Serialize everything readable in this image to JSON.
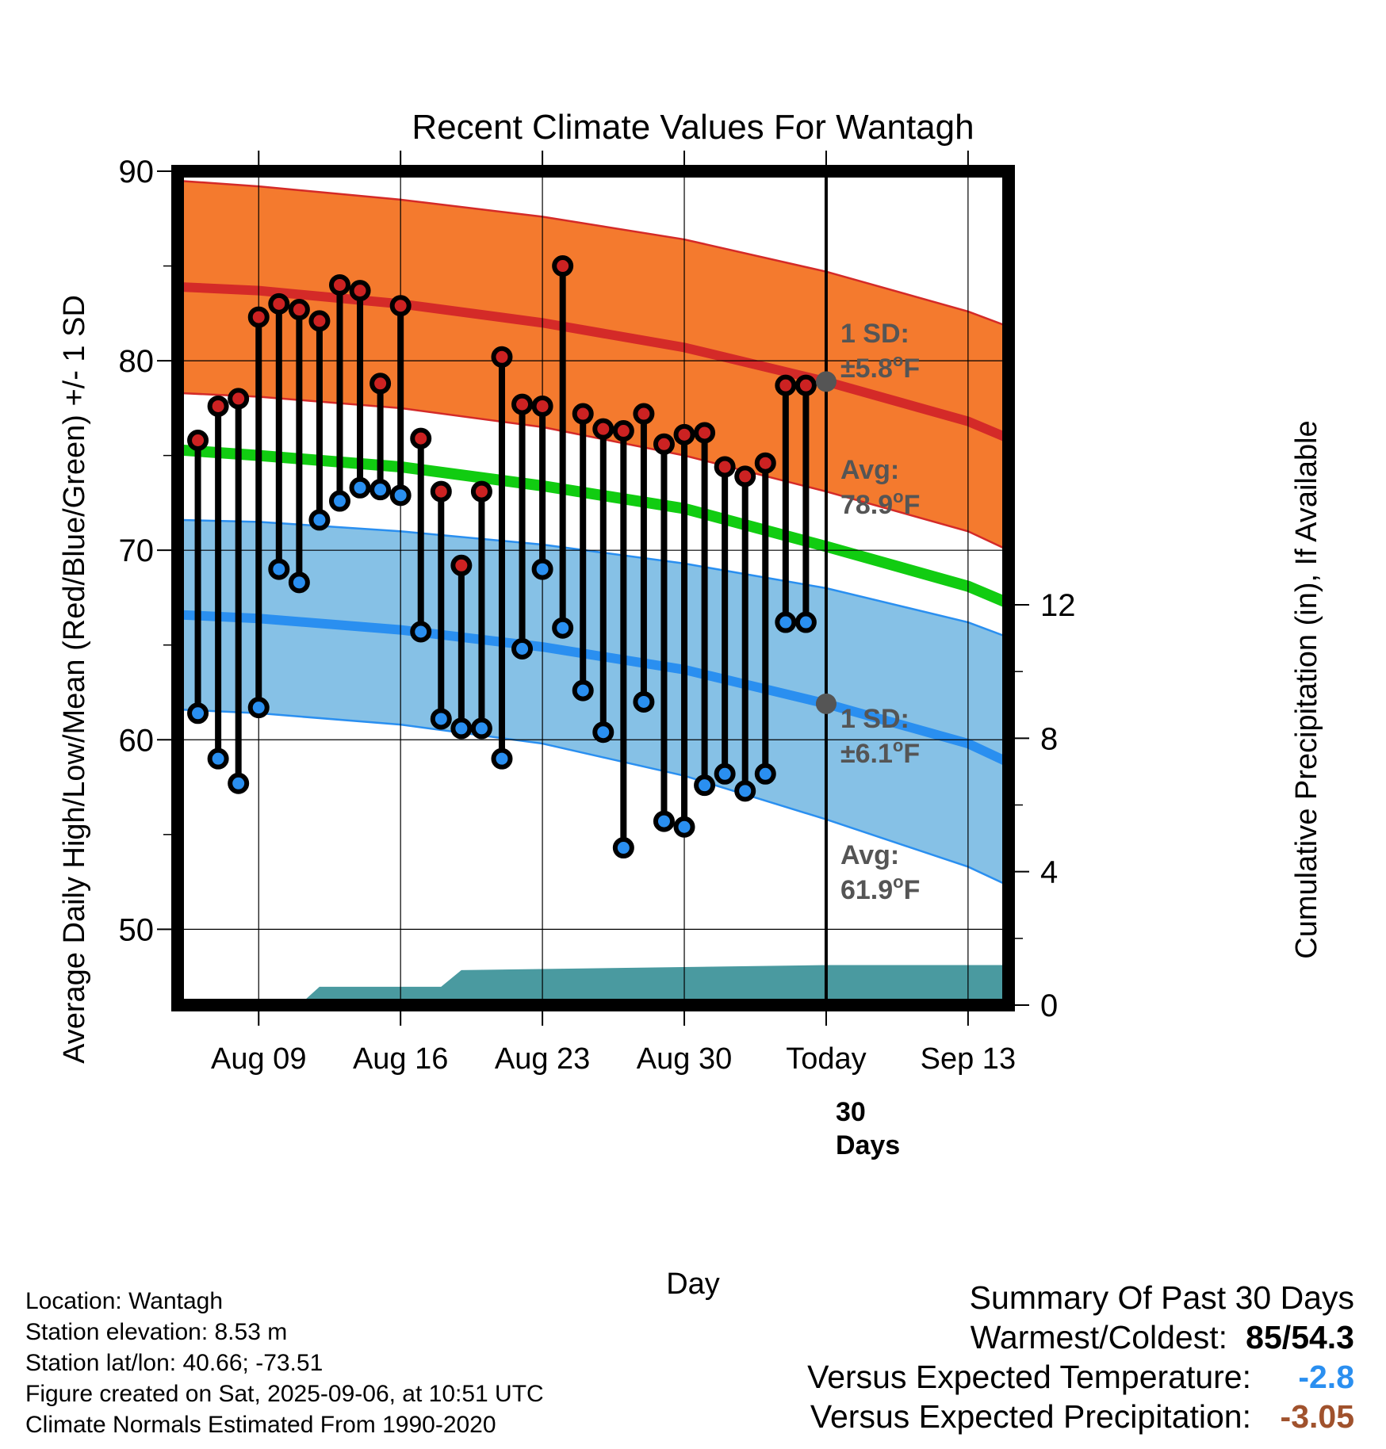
{
  "chart_data": {
    "type": "line",
    "title": "Recent Climate Values For Wantagh",
    "xlabel": "Day",
    "ylabel": "Average Daily High/Low/Mean (Red/Blue/Green) +/- 1 SD",
    "y2label": "Cumulative Precipitation (in), If Available",
    "ylim": [
      46,
      90
    ],
    "y2lim": [
      0,
      25
    ],
    "yticks": [
      50,
      60,
      70,
      80,
      90
    ],
    "y2ticks": [
      0,
      4,
      8,
      12
    ],
    "x_tick_labels": [
      {
        "label": "Aug 09",
        "date": "2025-08-09"
      },
      {
        "label": "Aug 16",
        "date": "2025-08-16"
      },
      {
        "label": "Aug 23",
        "date": "2025-08-23"
      },
      {
        "label": "Aug 30",
        "date": "2025-08-30"
      },
      {
        "label": "Today",
        "date": "2025-09-06"
      },
      {
        "label": "Sep 13",
        "date": "2025-09-13"
      }
    ],
    "xlim": [
      "2025-08-05",
      "2025-09-15"
    ],
    "today": "2025-09-06",
    "grid": true,
    "normals": {
      "dates": [
        "2025-08-05",
        "2025-08-09",
        "2025-08-16",
        "2025-08-23",
        "2025-08-30",
        "2025-09-06",
        "2025-09-13",
        "2025-09-15"
      ],
      "high_avg": [
        83.9,
        83.7,
        83.0,
        82.0,
        80.7,
        78.9,
        76.8,
        75.9
      ],
      "high_upper": [
        89.5,
        89.2,
        88.5,
        87.6,
        86.4,
        84.7,
        82.6,
        81.8
      ],
      "high_lower": [
        78.3,
        78.1,
        77.5,
        76.5,
        75.0,
        73.1,
        71.0,
        70.0
      ],
      "low_avg": [
        66.6,
        66.4,
        65.8,
        64.9,
        63.7,
        61.9,
        59.8,
        58.8
      ],
      "low_upper": [
        71.6,
        71.5,
        71.0,
        70.3,
        69.3,
        68.0,
        66.2,
        65.4
      ],
      "low_lower": [
        61.6,
        61.4,
        60.8,
        59.8,
        58.1,
        55.8,
        53.3,
        52.3
      ],
      "mean_avg": [
        75.3,
        75.0,
        74.4,
        73.4,
        72.2,
        70.2,
        68.1,
        67.2
      ]
    },
    "daily": {
      "dates": [
        "2025-08-06",
        "2025-08-07",
        "2025-08-08",
        "2025-08-09",
        "2025-08-10",
        "2025-08-11",
        "2025-08-12",
        "2025-08-13",
        "2025-08-14",
        "2025-08-15",
        "2025-08-16",
        "2025-08-17",
        "2025-08-18",
        "2025-08-19",
        "2025-08-20",
        "2025-08-21",
        "2025-08-22",
        "2025-08-23",
        "2025-08-24",
        "2025-08-25",
        "2025-08-26",
        "2025-08-27",
        "2025-08-28",
        "2025-08-29",
        "2025-08-30",
        "2025-08-31",
        "2025-09-01",
        "2025-09-02",
        "2025-09-03",
        "2025-09-04",
        "2025-09-05"
      ],
      "highs": [
        75.8,
        77.6,
        78.0,
        82.3,
        83.0,
        82.7,
        82.1,
        84.0,
        83.7,
        78.8,
        82.9,
        75.9,
        73.1,
        69.2,
        73.1,
        80.2,
        77.7,
        77.6,
        85.0,
        77.2,
        76.4,
        76.3,
        77.2,
        75.6,
        76.1,
        76.2,
        74.4,
        73.9,
        74.6,
        78.7,
        78.7
      ],
      "lows": [
        61.4,
        59.0,
        57.7,
        61.7,
        69.0,
        68.3,
        71.6,
        72.6,
        73.3,
        73.2,
        72.9,
        65.7,
        61.1,
        60.6,
        60.6,
        59.0,
        64.8,
        69.0,
        65.9,
        62.6,
        60.4,
        54.3,
        62.0,
        55.7,
        55.4,
        57.6,
        58.2,
        57.3,
        58.2,
        66.2,
        66.2
      ]
    },
    "precip_cumulative": {
      "dates": [
        "2025-08-05",
        "2025-08-11",
        "2025-08-12",
        "2025-08-18",
        "2025-08-19",
        "2025-09-06",
        "2025-09-15"
      ],
      "values": [
        0.0,
        0.0,
        0.55,
        0.55,
        1.05,
        1.2,
        1.2
      ]
    },
    "annotations": {
      "high_sd": "1 SD:",
      "high_sd_value": "±5.8",
      "high_avg": "Avg:",
      "high_avg_value": "78.9",
      "low_sd": "1 SD:",
      "low_sd_value": "±6.1",
      "low_avg": "Avg:",
      "low_avg_value": "61.9",
      "unit": "F",
      "degree": "o",
      "days_line1": "30",
      "days_line2": "Days"
    },
    "colors": {
      "high_band": "#f47a2e",
      "high_line": "#d42a28",
      "low_band": "#86c1e6",
      "low_line": "#2a8ff0",
      "mean_line": "#11cc11",
      "precip": "#4a9aa0",
      "high_dot": "#cc2222",
      "low_dot": "#2a8ff0",
      "marker": "#555555"
    }
  },
  "footer": {
    "location": "Location: Wantagh",
    "elevation": "Station elevation: 8.53 m",
    "latlon": "Station lat/lon: 40.66; -73.51",
    "created": "Figure created on Sat, 2025-09-06, at 10:51 UTC",
    "normals": "Climate Normals Estimated From 1990-2020"
  },
  "summary": {
    "title": "Summary Of Past 30 Days",
    "warmest_label": "Warmest/Coldest:",
    "warmest_high": "85",
    "warmest_sep": "/",
    "warmest_low": "54.3",
    "temp_label": "Versus Expected Temperature:",
    "temp_value": "-2.8",
    "temp_color": "#2a8ff0",
    "precip_label": "Versus Expected Precipitation:",
    "precip_value": "-3.05",
    "precip_color": "#a0522d"
  }
}
